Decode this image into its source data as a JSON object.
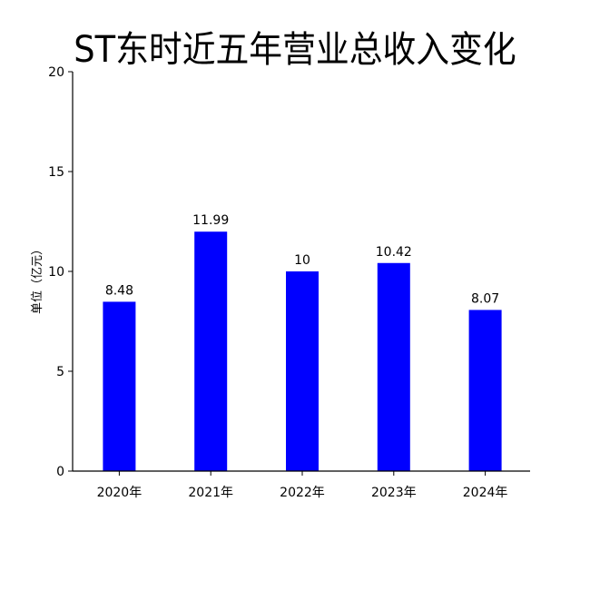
{
  "chart_data": {
    "type": "bar",
    "title": "ST东时近五年营业总收入变化",
    "ylabel": "单位（亿元）",
    "xlabel": "",
    "categories": [
      "2020年",
      "2021年",
      "2022年",
      "2023年",
      "2024年"
    ],
    "values": [
      8.48,
      11.99,
      10,
      10.42,
      8.07
    ],
    "data_labels": [
      "8.48",
      "11.99",
      "10",
      "10.42",
      "8.07"
    ],
    "ylim": [
      0,
      20
    ],
    "yticks": [
      "0",
      "5",
      "10",
      "15",
      "20"
    ],
    "grid": false,
    "legend": "none",
    "bar_color": "#0000ff"
  }
}
